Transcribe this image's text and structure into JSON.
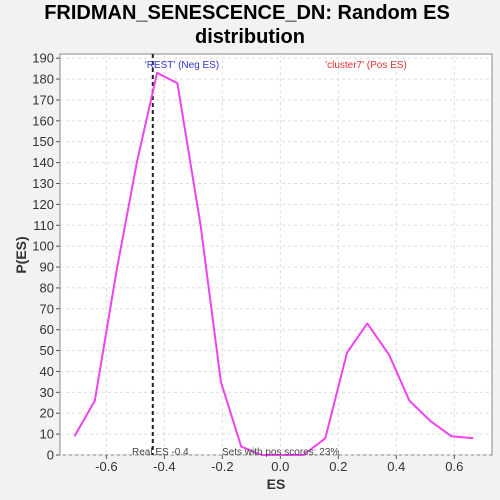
{
  "chart_data": {
    "type": "line",
    "title_line1": "FRIDMAN_SENESCENCE_DN: Random ES",
    "title_line2": "distribution",
    "xlabel": "ES",
    "ylabel": "P(ES)",
    "xlim": [
      -0.76,
      0.73
    ],
    "ylim": [
      0,
      192
    ],
    "xticks": [
      -0.6,
      -0.4,
      -0.2,
      0.0,
      0.2,
      0.4,
      0.6
    ],
    "xtick_labels": [
      "-0.6",
      "-0.4",
      "-0.2",
      "0.0",
      "0.2",
      "0.4",
      "0.6"
    ],
    "yticks": [
      0,
      10,
      20,
      30,
      40,
      50,
      60,
      70,
      80,
      90,
      100,
      110,
      120,
      130,
      140,
      150,
      160,
      170,
      180,
      190
    ],
    "ytick_labels": [
      "0",
      "10",
      "20",
      "30",
      "40",
      "50",
      "60",
      "70",
      "80",
      "90",
      "100",
      "110",
      "120",
      "130",
      "140",
      "150",
      "160",
      "170",
      "180",
      "190"
    ],
    "grid": true,
    "series": [
      {
        "color": "#ee44ee",
        "x": [
          -0.71,
          -0.64,
          -0.565,
          -0.495,
          -0.425,
          -0.355,
          -0.275,
          -0.205,
          -0.135,
          -0.065,
          0.0,
          0.08,
          0.155,
          0.23,
          0.3,
          0.375,
          0.445,
          0.52,
          0.59,
          0.665
        ],
        "y": [
          9,
          26,
          88,
          140,
          183,
          178,
          110,
          35,
          4,
          0,
          0,
          0,
          8,
          49,
          63,
          48,
          26,
          16,
          9,
          8
        ]
      }
    ],
    "real_es": -0.44,
    "annotations": {
      "neg": {
        "text": "'REST' (Neg ES)",
        "color": "#3333cc"
      },
      "pos": {
        "text": "'cluster7' (Pos ES)",
        "color": "#dd3333"
      },
      "real_es_label": "Real ES -0.4",
      "sets_label": "Sets with pos scores: 23%"
    }
  }
}
